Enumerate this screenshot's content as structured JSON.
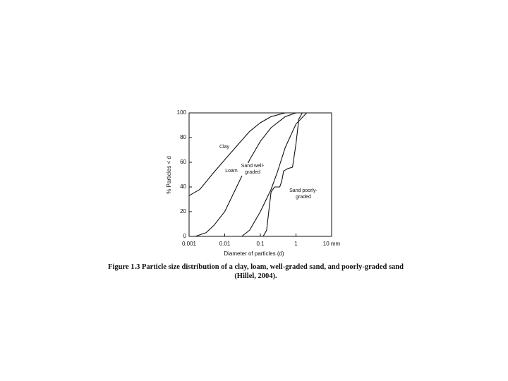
{
  "chart_data": {
    "type": "line",
    "caption": "Figure 1.3 Particle size distribution of a clay, loam, well-graded sand, and poorly-graded sand (Hillel, 2004).",
    "xlabel": "Diameter of particles (d)",
    "ylabel": "% Particles < d",
    "log_x": true,
    "xlim": [
      0.001,
      10
    ],
    "xticks": [
      0.001,
      0.01,
      0.1,
      1,
      {
        "value": 10,
        "label": "10 mm"
      }
    ],
    "ylim": [
      0,
      100
    ],
    "yticks": [
      0,
      20,
      40,
      60,
      80,
      100
    ],
    "series": [
      {
        "name": "Clay",
        "color": "#111111",
        "x": [
          0.001,
          0.002,
          0.005,
          0.01,
          0.02,
          0.05,
          0.1,
          0.2,
          0.5
        ],
        "values": [
          33,
          38,
          52,
          62,
          72,
          85,
          92,
          97,
          100
        ]
      },
      {
        "name": "Loam",
        "color": "#111111",
        "x": [
          0.0015,
          0.003,
          0.005,
          0.01,
          0.02,
          0.05,
          0.1,
          0.2,
          0.5,
          1
        ],
        "values": [
          0,
          3,
          9,
          20,
          38,
          62,
          77,
          88,
          97,
          100
        ]
      },
      {
        "name": "Sand well-graded",
        "color": "#111111",
        "x": [
          0.03,
          0.05,
          0.1,
          0.2,
          0.3,
          0.5,
          1,
          2
        ],
        "values": [
          0,
          5,
          20,
          38,
          52,
          72,
          91,
          100
        ]
      },
      {
        "name": "Sand poorly-graded",
        "color": "#111111",
        "x": [
          0.12,
          0.15,
          0.18,
          0.2,
          0.25,
          0.35,
          0.4,
          0.45,
          0.6,
          0.8,
          1,
          1.2,
          1.5
        ],
        "values": [
          0,
          5,
          25,
          36,
          40,
          40,
          45,
          53,
          55,
          56,
          75,
          95,
          100
        ]
      }
    ]
  }
}
